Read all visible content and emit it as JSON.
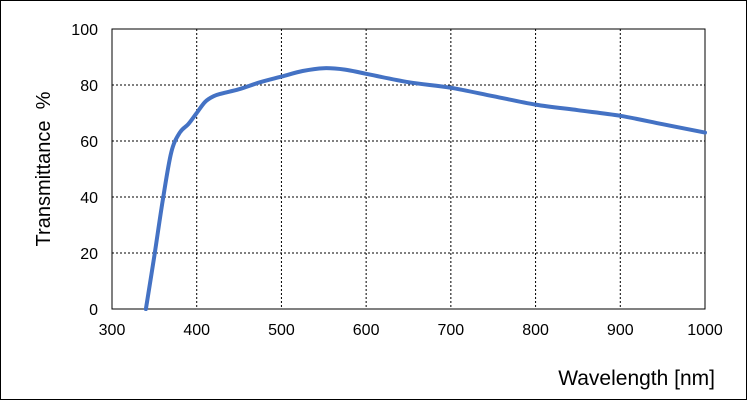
{
  "chart_data": {
    "type": "line",
    "title": "",
    "xlabel": "Wavelength [nm]",
    "ylabel": "Transmittance  %",
    "xlim": [
      300,
      1000
    ],
    "ylim": [
      0,
      100
    ],
    "x_ticks": [
      300,
      400,
      500,
      600,
      700,
      800,
      900,
      1000
    ],
    "y_ticks": [
      0,
      20,
      40,
      60,
      80,
      100
    ],
    "grid": true,
    "legend": "none",
    "series": [
      {
        "color": "#4472C4",
        "x": [
          340,
          350,
          360,
          370,
          380,
          390,
          400,
          410,
          420,
          430,
          450,
          475,
          500,
          525,
          550,
          575,
          600,
          650,
          700,
          750,
          800,
          850,
          900,
          950,
          1000
        ],
        "y": [
          0,
          19,
          39,
          56,
          63,
          66,
          70,
          74,
          76,
          77,
          78.5,
          81,
          83,
          85,
          86,
          85.5,
          84,
          81,
          79,
          76,
          73,
          71,
          69,
          66,
          63
        ]
      }
    ]
  }
}
